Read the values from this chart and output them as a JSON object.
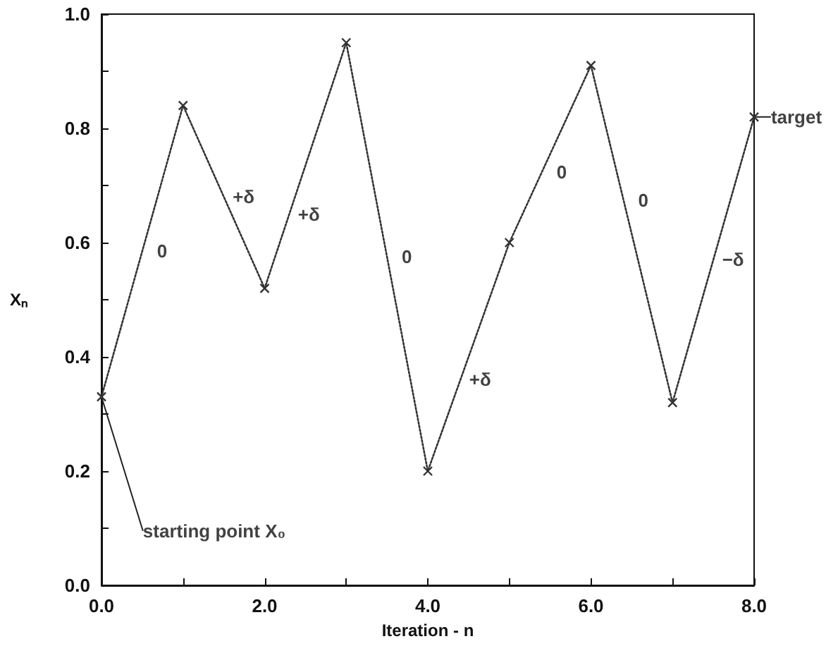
{
  "chart_data": {
    "type": "line",
    "xlabel": "Iteration - n",
    "ylabel": "Xₙ",
    "x": [
      0,
      1,
      2,
      3,
      4,
      5,
      6,
      7,
      8
    ],
    "series": [
      {
        "color": "#333333",
        "values": [
          0.33,
          0.84,
          0.52,
          0.95,
          0.2,
          0.6,
          0.91,
          0.32,
          0.82
        ]
      }
    ],
    "marker": "cross",
    "line_style": "dotted",
    "grid": false,
    "xlim": [
      0,
      8
    ],
    "xticks": [
      {
        "value": 0,
        "label": "0.0"
      },
      {
        "value": 1,
        "label": null
      },
      {
        "value": 2,
        "label": "2.0"
      },
      {
        "value": 3,
        "label": null
      },
      {
        "value": 4,
        "label": "4.0"
      },
      {
        "value": 5,
        "label": null
      },
      {
        "value": 6,
        "label": "6.0"
      },
      {
        "value": 7,
        "label": null
      },
      {
        "value": 8,
        "label": "8.0"
      }
    ],
    "ylim": [
      0,
      1
    ],
    "yticks": [
      {
        "value": 0,
        "label": "0.0"
      },
      {
        "value": 0.1,
        "label": null
      },
      {
        "value": 0.2,
        "label": "0.2"
      },
      {
        "value": 0.3,
        "label": null
      },
      {
        "value": 0.4,
        "label": "0.4"
      },
      {
        "value": 0.5,
        "label": null
      },
      {
        "value": 0.6,
        "label": "0.6"
      },
      {
        "value": 0.7,
        "label": null
      },
      {
        "value": 0.8,
        "label": "0.8"
      },
      {
        "value": 0.9,
        "label": null
      },
      {
        "value": 1,
        "label": "1.0"
      }
    ],
    "annotations": [
      {
        "text": "0",
        "x": 0.5,
        "y": 0.585
      },
      {
        "text": "+δ",
        "x": 1.5,
        "y": 0.68
      },
      {
        "text": "+δ",
        "x": 2.3,
        "y": 0.649
      },
      {
        "text": "0",
        "x": 3.5,
        "y": 0.575
      },
      {
        "text": "+δ",
        "x": 4.4,
        "y": 0.36
      },
      {
        "text": "0",
        "x": 5.4,
        "y": 0.724
      },
      {
        "text": "0",
        "x": 6.4,
        "y": 0.674
      },
      {
        "text": "−δ",
        "x": 7.5,
        "y": 0.57
      },
      {
        "text": "target",
        "x": 8,
        "y": 0.82
      },
      {
        "text": "starting point X₀",
        "x": 0,
        "y": 0.33
      }
    ]
  }
}
